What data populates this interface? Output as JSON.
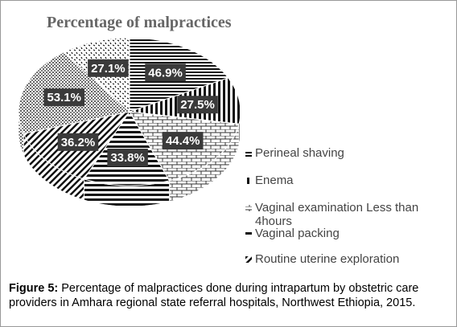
{
  "chart_data": {
    "type": "pie",
    "title": "Percentage of malpractices",
    "categories": [
      "Perineal shaving",
      "Enema",
      "Vaginal examination Less than 4hours",
      "Vaginal packing",
      "Routine uterine exploration",
      null,
      null
    ],
    "values": [
      46.9,
      27.5,
      44.4,
      33.8,
      36.2,
      53.1,
      27.1
    ],
    "value_labels": [
      "46.9%",
      "27.5%",
      "44.4%",
      "33.8%",
      "36.2%",
      "53.1%",
      "27.1%"
    ]
  },
  "caption_label": "Figure 5:",
  "caption": "Percentage of malpractices done during intrapartum by obstetric care providers in Amhara regional state referral hospitals, Northwest Ethiopia, 2015."
}
